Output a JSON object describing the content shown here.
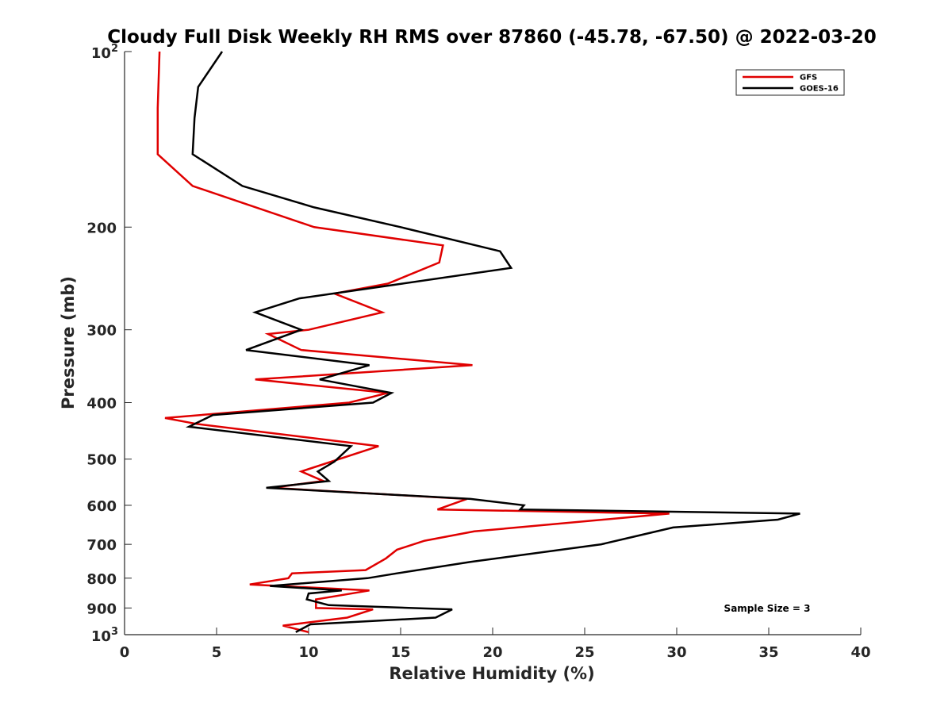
{
  "chart_data": {
    "type": "line",
    "title": "Cloudy Full Disk Weekly RH RMS over 87860 (-45.78, -67.50) @ 2022-03-20",
    "xlabel": "Relative Humidity (%)",
    "ylabel": "Pressure (mb)",
    "xlim": [
      0,
      40
    ],
    "ylim": [
      100,
      1000
    ],
    "yscale": "log",
    "yreversed": true,
    "x_ticks": [
      0,
      5,
      10,
      15,
      20,
      25,
      30,
      35,
      40
    ],
    "y_ticks": [
      {
        "value": 100,
        "base": "10",
        "exp": "2"
      },
      {
        "value": 200,
        "label": "200"
      },
      {
        "value": 300,
        "label": "300"
      },
      {
        "value": 400,
        "label": "400"
      },
      {
        "value": 500,
        "label": "500"
      },
      {
        "value": 600,
        "label": "600"
      },
      {
        "value": 700,
        "label": "700"
      },
      {
        "value": 800,
        "label": "800"
      },
      {
        "value": 900,
        "label": "900"
      },
      {
        "value": 1000,
        "base": "10",
        "exp": "3"
      }
    ],
    "legend_position": "top-right",
    "annotation": "Sample Size = 3",
    "series": [
      {
        "name": "GFS",
        "color": "#e00000",
        "points": [
          [
            1.9,
            100
          ],
          [
            1.8,
            125
          ],
          [
            1.8,
            150
          ],
          [
            3.7,
            170
          ],
          [
            10.3,
            200
          ],
          [
            17.3,
            215
          ],
          [
            17.1,
            230
          ],
          [
            14.3,
            250
          ],
          [
            11.4,
            260
          ],
          [
            14.0,
            280
          ],
          [
            10.0,
            300
          ],
          [
            7.8,
            305
          ],
          [
            9.6,
            325
          ],
          [
            18.9,
            345
          ],
          [
            7.1,
            365
          ],
          [
            14.3,
            385
          ],
          [
            12.2,
            400
          ],
          [
            2.2,
            425
          ],
          [
            3.9,
            435
          ],
          [
            13.8,
            475
          ],
          [
            9.6,
            525
          ],
          [
            10.8,
            545
          ],
          [
            8.0,
            560
          ],
          [
            18.6,
            585
          ],
          [
            17.0,
            610
          ],
          [
            29.6,
            620
          ],
          [
            19.0,
            665
          ],
          [
            16.3,
            690
          ],
          [
            14.8,
            715
          ],
          [
            14.2,
            740
          ],
          [
            13.1,
            775
          ],
          [
            9.1,
            785
          ],
          [
            8.9,
            800
          ],
          [
            6.8,
            820
          ],
          [
            13.3,
            840
          ],
          [
            10.4,
            870
          ],
          [
            10.4,
            900
          ],
          [
            13.5,
            905
          ],
          [
            12.1,
            935
          ],
          [
            8.6,
            965
          ],
          [
            10.0,
            990
          ]
        ]
      },
      {
        "name": "GOES-16",
        "color": "#000000",
        "points": [
          [
            5.3,
            100
          ],
          [
            4.0,
            115
          ],
          [
            3.8,
            130
          ],
          [
            3.7,
            150
          ],
          [
            6.4,
            170
          ],
          [
            10.3,
            185
          ],
          [
            15.0,
            200
          ],
          [
            20.4,
            220
          ],
          [
            21.0,
            235
          ],
          [
            15.1,
            250
          ],
          [
            9.5,
            265
          ],
          [
            7.1,
            280
          ],
          [
            9.6,
            300
          ],
          [
            6.6,
            325
          ],
          [
            13.3,
            345
          ],
          [
            10.6,
            365
          ],
          [
            14.5,
            385
          ],
          [
            13.5,
            400
          ],
          [
            4.8,
            420
          ],
          [
            3.5,
            440
          ],
          [
            12.3,
            475
          ],
          [
            11.4,
            505
          ],
          [
            10.5,
            525
          ],
          [
            11.1,
            545
          ],
          [
            7.7,
            560
          ],
          [
            18.8,
            585
          ],
          [
            21.7,
            600
          ],
          [
            21.5,
            610
          ],
          [
            36.7,
            620
          ],
          [
            35.5,
            635
          ],
          [
            29.8,
            655
          ],
          [
            27.6,
            680
          ],
          [
            25.9,
            700
          ],
          [
            18.8,
            750
          ],
          [
            14.8,
            785
          ],
          [
            13.2,
            800
          ],
          [
            7.9,
            825
          ],
          [
            11.8,
            840
          ],
          [
            10.0,
            850
          ],
          [
            9.9,
            870
          ],
          [
            11.1,
            890
          ],
          [
            17.8,
            905
          ],
          [
            16.9,
            935
          ],
          [
            10.1,
            960
          ],
          [
            9.3,
            990
          ]
        ]
      }
    ]
  }
}
